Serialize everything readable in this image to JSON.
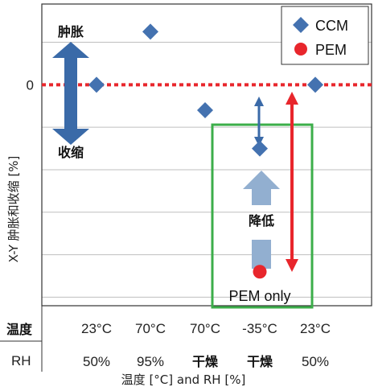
{
  "chart_data": {
    "type": "scatter",
    "title": "",
    "ylabel": "X-Y 肿胀和收缩 [%]",
    "xlabel": "温度 [°C] and RH [%]",
    "y_tick_labels": [
      "0"
    ],
    "categories": [
      {
        "temp": "23°C",
        "rh": "50%"
      },
      {
        "temp": "70°C",
        "rh": "95%"
      },
      {
        "temp": "70°C",
        "rh": "干燥"
      },
      {
        "temp": "-35°C",
        "rh": "干燥"
      },
      {
        "temp": "23°C",
        "rh": "50%"
      }
    ],
    "row_labels": {
      "temp": "温度",
      "rh": "RH"
    },
    "ylim": [
      -5.2,
      1.9
    ],
    "grid": "horizontal",
    "legend_position": "top-right",
    "series": [
      {
        "name": "CCM",
        "marker": "diamond",
        "color": "#4472b0",
        "values": [
          0,
          1.25,
          -0.6,
          -1.5,
          0
        ]
      },
      {
        "name": "PEM",
        "marker": "circle",
        "color": "#e8262c",
        "values": [
          null,
          null,
          null,
          -4.4,
          null
        ]
      }
    ],
    "annotations": {
      "swell": "肿胀",
      "shrink": "收缩",
      "decrease": "降低",
      "pem_only": "PEM only"
    },
    "colors": {
      "zero_line": "#e8262c",
      "arrow_blue": "#3a6aa8",
      "arrow_light": "#92afd0",
      "arrow_red": "#e8262c",
      "highlight_box": "#3cae4a",
      "grid": "#bfbfbf"
    }
  }
}
